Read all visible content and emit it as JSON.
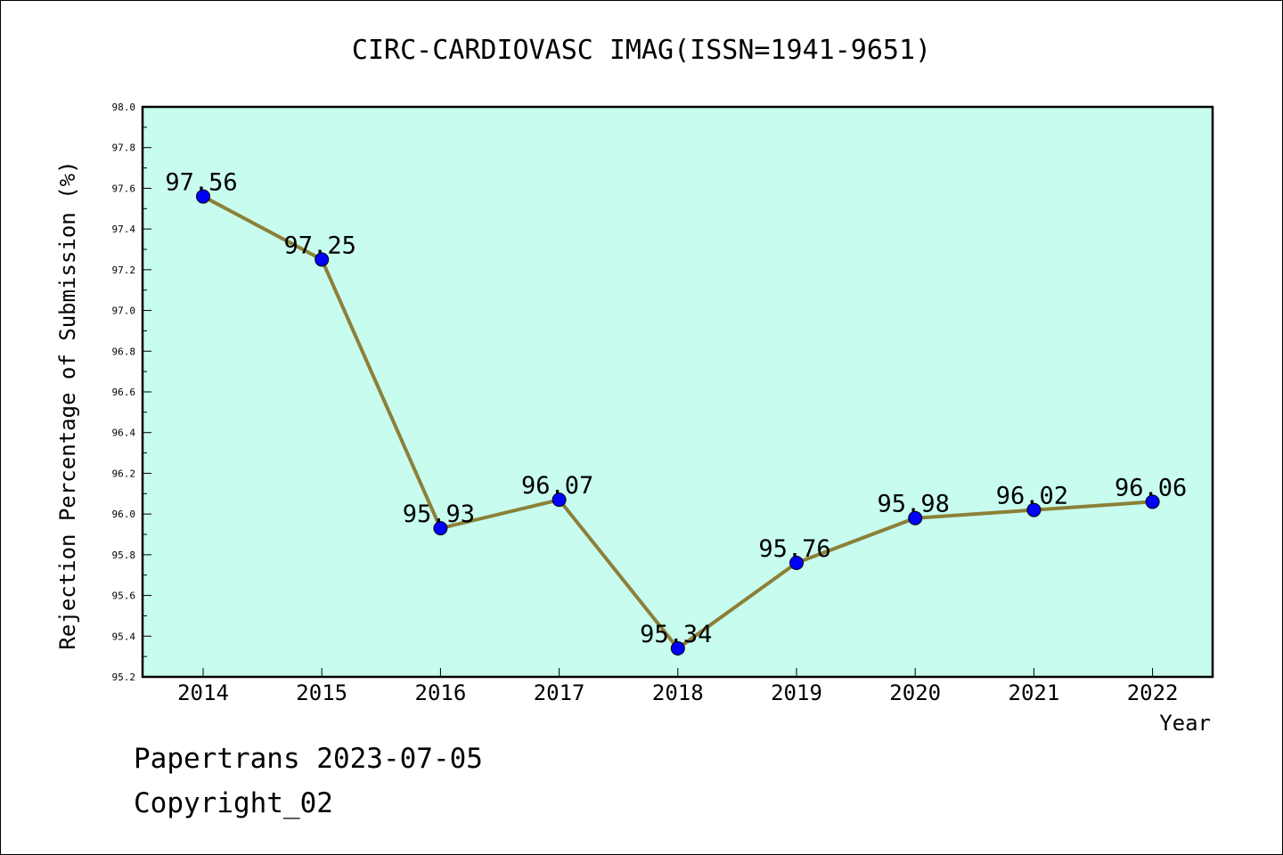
{
  "chart_data": {
    "type": "line",
    "title": "CIRC-CARDIOVASC IMAG(ISSN=1941-9651)",
    "xlabel": "Year",
    "ylabel": "Rejection Percentage of Submission (%)",
    "categories": [
      "2014",
      "2015",
      "2016",
      "2017",
      "2018",
      "2019",
      "2020",
      "2021",
      "2022"
    ],
    "values": [
      97.56,
      97.25,
      95.93,
      96.07,
      95.34,
      95.76,
      95.98,
      96.02,
      96.06
    ],
    "data_labels": [
      "97.56",
      "97.25",
      "95.93",
      "96.07",
      "95.34",
      "95.76",
      "95.98",
      "96.02",
      "96.06"
    ],
    "ylim": [
      95.2,
      98.0
    ],
    "yticks": [
      "95.2",
      "95.4",
      "95.6",
      "95.8",
      "96.0",
      "96.2",
      "96.4",
      "96.6",
      "96.8",
      "97.0",
      "97.2",
      "97.4",
      "97.6",
      "97.8",
      "98.0"
    ],
    "grid": false,
    "colors": {
      "plot_background": "#c8fcee",
      "line": "#8c8038",
      "marker": "#0000ff"
    }
  },
  "footer": {
    "line1": "Papertrans 2023-07-05",
    "line2": "Copyright_02"
  }
}
